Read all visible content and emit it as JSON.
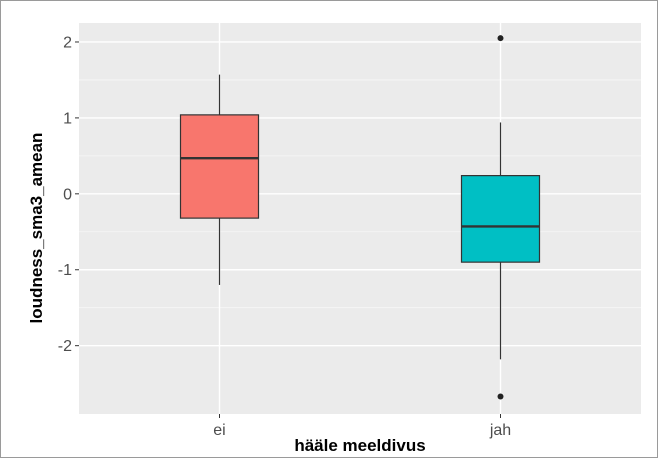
{
  "chart_data": {
    "type": "boxplot",
    "title": "",
    "xlabel": "hääle meeldivus",
    "ylabel": "loudness_sma3_amean",
    "ylim": [
      -2.9,
      2.25
    ],
    "yticks": [
      -2,
      -1,
      0,
      1,
      2
    ],
    "categories": [
      "ei",
      "jah"
    ],
    "grid": true,
    "legend": "none",
    "background": "#ebebeb",
    "boxes": [
      {
        "category": "ei",
        "fill": "#f8766d",
        "whisker_low": -1.2,
        "q1": -0.32,
        "median": 0.47,
        "q3": 1.04,
        "whisker_high": 1.57,
        "outliers": []
      },
      {
        "category": "jah",
        "fill": "#00bfc4",
        "whisker_low": -2.18,
        "q1": -0.9,
        "median": -0.43,
        "q3": 0.24,
        "whisker_high": 0.94,
        "outliers": [
          2.05,
          -2.67
        ]
      }
    ]
  }
}
